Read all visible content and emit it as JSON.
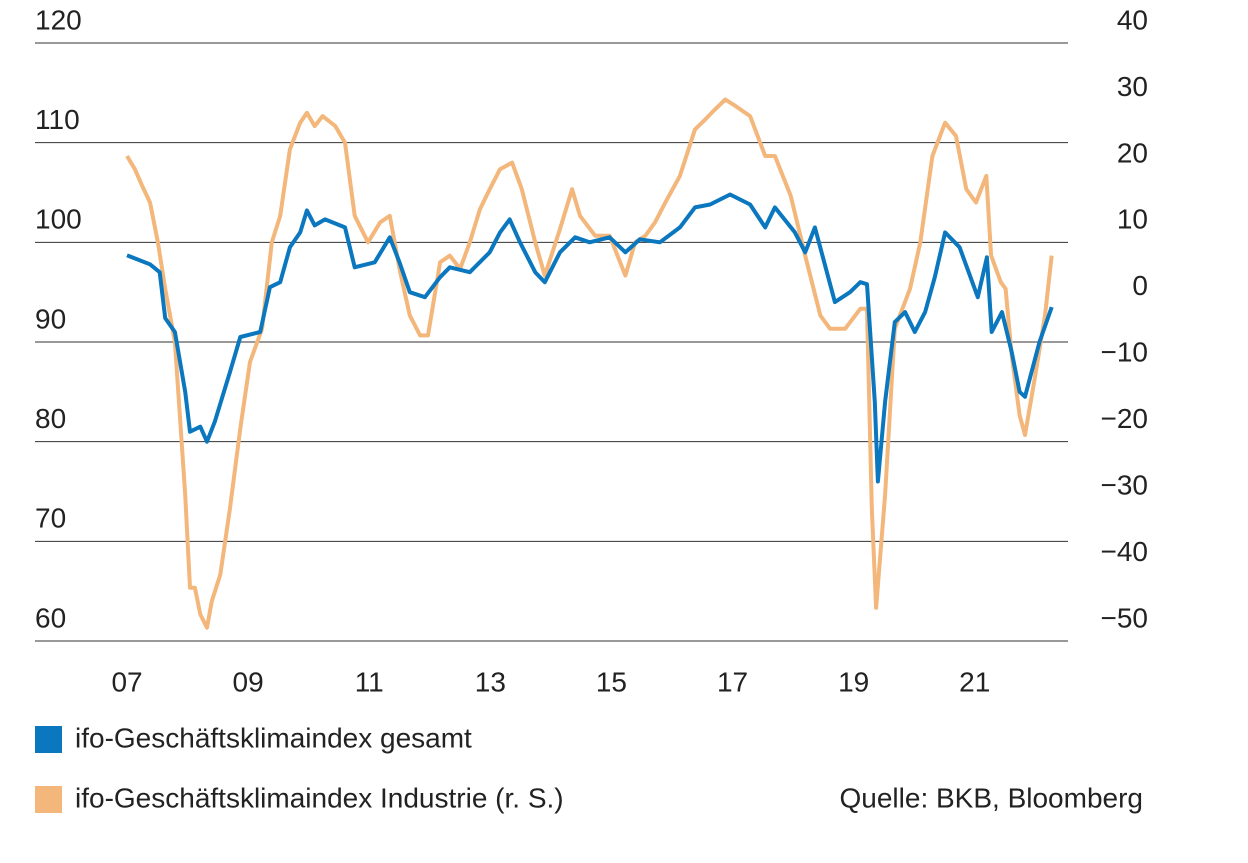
{
  "chart_data": {
    "type": "line",
    "xlim": [
      5.48,
      22.54
    ],
    "xticks": [
      {
        "value": 7,
        "label": "07"
      },
      {
        "value": 9,
        "label": "09"
      },
      11,
      13,
      15,
      17,
      19,
      21
    ],
    "ylim": [
      60,
      120
    ],
    "yticks": [
      60,
      70,
      80,
      90,
      100,
      110,
      120
    ],
    "y2lim": [
      -50,
      40
    ],
    "y2ticks": [
      {
        "value": -50,
        "label": "−50"
      },
      {
        "value": -40,
        "label": "−40"
      },
      {
        "value": -30,
        "label": "−30"
      },
      {
        "value": -20,
        "label": "−20"
      },
      {
        "value": -10,
        "label": "−10"
      },
      0,
      10,
      20,
      30,
      40
    ],
    "grid": true,
    "source": "Quelle: BKB, Bloomberg",
    "series": [
      {
        "name": "ifo-Geschäftsklimaindex gesamt",
        "color": "#0a77be",
        "x": [
          7.0,
          7.38,
          7.54,
          7.63,
          7.79,
          7.96,
          8.04,
          8.21,
          8.32,
          8.45,
          8.7,
          8.87,
          9.2,
          9.36,
          9.53,
          9.69,
          9.86,
          9.97,
          10.1,
          10.27,
          10.6,
          10.76,
          11.09,
          11.34,
          11.5,
          11.67,
          11.92,
          12.17,
          12.33,
          12.66,
          12.99,
          13.16,
          13.32,
          13.49,
          13.74,
          13.9,
          14.15,
          14.4,
          14.64,
          14.97,
          15.23,
          15.47,
          15.8,
          16.13,
          16.38,
          16.63,
          16.96,
          17.29,
          17.54,
          17.7,
          18.03,
          18.2,
          18.36,
          18.69,
          18.94,
          19.11,
          19.22,
          19.35,
          19.4,
          19.52,
          19.68,
          19.85,
          20.01,
          20.18,
          20.34,
          20.51,
          20.75,
          21.05,
          21.2,
          21.28,
          21.45,
          21.61,
          21.74,
          21.83,
          22.07,
          22.27
        ],
        "values": [
          98.7,
          97.8,
          97,
          92.4,
          91,
          85,
          81,
          81.5,
          80,
          82,
          87,
          90.5,
          91,
          95.5,
          96,
          99.5,
          101,
          103.2,
          101.7,
          102.3,
          101.5,
          97.5,
          98,
          100.5,
          98,
          95,
          94.5,
          96.5,
          97.5,
          97,
          99,
          101,
          102.3,
          100,
          97,
          96,
          99,
          100.5,
          100,
          100.5,
          99,
          100.3,
          100,
          101.5,
          103.5,
          103.8,
          104.8,
          103.8,
          101.5,
          103.5,
          101,
          99,
          101.5,
          94,
          95,
          96,
          95.8,
          84,
          76,
          84,
          92,
          93,
          91,
          93,
          96.5,
          101,
          99.5,
          94.5,
          98.5,
          91,
          93,
          89,
          85,
          84.5,
          90,
          93.5
        ]
      },
      {
        "name": "ifo-Geschäftsklimaindex Industrie (r. S.)",
        "color": "#f3b67b",
        "axis": "y2",
        "x": [
          7.0,
          7.13,
          7.25,
          7.38,
          7.51,
          7.63,
          7.79,
          7.96,
          8.04,
          8.12,
          8.21,
          8.32,
          8.4,
          8.54,
          8.7,
          8.87,
          9.03,
          9.23,
          9.39,
          9.53,
          9.69,
          9.86,
          9.97,
          10.1,
          10.23,
          10.44,
          10.6,
          10.76,
          10.98,
          11.18,
          11.34,
          11.5,
          11.67,
          11.84,
          11.97,
          12.17,
          12.33,
          12.5,
          12.66,
          12.83,
          12.99,
          13.16,
          13.36,
          13.52,
          13.74,
          13.9,
          14.15,
          14.35,
          14.48,
          14.73,
          14.97,
          15.23,
          15.39,
          15.56,
          15.72,
          15.89,
          16.13,
          16.38,
          16.55,
          16.71,
          16.88,
          17.05,
          17.29,
          17.54,
          17.7,
          17.96,
          18.2,
          18.45,
          18.61,
          18.86,
          19.11,
          19.22,
          19.3,
          19.37,
          19.52,
          19.68,
          19.93,
          20.1,
          20.3,
          20.51,
          20.69,
          20.86,
          21.02,
          21.19,
          21.27,
          21.43,
          21.51,
          21.61,
          21.74,
          21.83,
          22.0,
          22.16,
          22.27
        ],
        "values": [
          23,
          21,
          18.5,
          16,
          10,
          3,
          -5,
          -28,
          -42,
          -42,
          -46,
          -48,
          -44,
          -40,
          -30,
          -18,
          -8,
          -3,
          10,
          14,
          24,
          28,
          29.5,
          27.5,
          29,
          27.5,
          25,
          14,
          10,
          13,
          14,
          6,
          -1,
          -4,
          -4,
          7,
          8,
          6,
          10,
          15,
          18,
          21,
          22,
          18,
          10,
          5,
          12,
          18,
          14,
          11,
          11,
          5,
          10,
          11,
          13,
          16,
          20,
          27,
          28.5,
          30,
          31.5,
          30.5,
          29,
          23,
          23,
          17,
          8,
          -1,
          -3,
          -3,
          0,
          0,
          -30,
          -45,
          -28,
          -3,
          3,
          10,
          23,
          28,
          26,
          18,
          16,
          20,
          8,
          4,
          3,
          -7,
          -16,
          -19,
          -10,
          -1,
          8
        ]
      }
    ]
  }
}
